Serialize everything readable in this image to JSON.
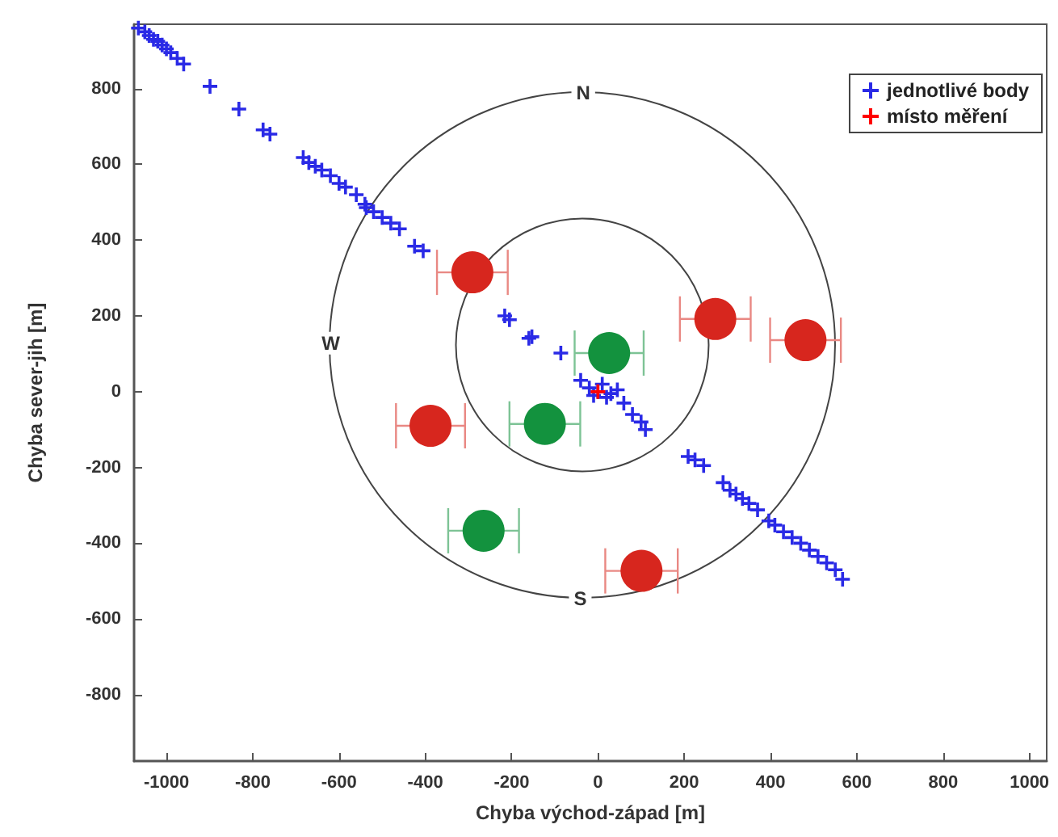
{
  "chart_data": {
    "type": "scatter",
    "xlabel": "Chyba východ-západ [m]",
    "ylabel": "Chyba sever-jih [m]",
    "xlim": [
      -1075,
      1040
    ],
    "ylim": [
      -975,
      970
    ],
    "xticks": [
      -1000,
      -800,
      -600,
      -400,
      -200,
      0,
      200,
      400,
      600,
      800,
      1000
    ],
    "yticks": [
      -800,
      -600,
      -400,
      -200,
      0,
      200,
      400,
      600,
      800
    ],
    "grid": false,
    "legend": "top right",
    "annotations": [
      {
        "text": "N",
        "x": -34,
        "y": 789
      },
      {
        "text": "W",
        "x": -619,
        "y": 128
      },
      {
        "text": "S",
        "x": -41,
        "y": -546
      }
    ],
    "series": [
      {
        "name": "jednotlivé body",
        "color": "#2a2ae6",
        "marker": "cross",
        "x": [
          -1065,
          -1050,
          -1040,
          -1030,
          -1020,
          -1010,
          -1000,
          -990,
          -975,
          -960,
          -899,
          -832,
          -776,
          -760,
          -683,
          -670,
          -655,
          -640,
          -620,
          -600,
          -585,
          -560,
          -540,
          -537,
          -520,
          -500,
          -480,
          -460,
          -425,
          -405,
          -216,
          -205,
          -160,
          -153,
          -86,
          -40,
          -20,
          -10,
          0,
          10,
          20,
          30,
          45,
          60,
          80,
          100,
          110,
          209,
          225,
          245,
          290,
          306,
          320,
          335,
          350,
          370,
          396,
          410,
          430,
          450,
          470,
          490,
          510,
          530,
          550,
          567
        ],
        "values": [
          960,
          950,
          940,
          930,
          925,
          915,
          905,
          895,
          880,
          865,
          806,
          746,
          691,
          680,
          618,
          605,
          595,
          585,
          570,
          550,
          540,
          520,
          495,
          486,
          475,
          460,
          445,
          430,
          384,
          372,
          200,
          190,
          141,
          145,
          102,
          30,
          10,
          -10,
          0,
          20,
          -15,
          -5,
          5,
          -30,
          -60,
          -80,
          -100,
          -171,
          -180,
          -195,
          -240,
          -260,
          -270,
          -282,
          -295,
          -312,
          -341,
          -352,
          -370,
          -385,
          -400,
          -418,
          -435,
          -452,
          -470,
          -495
        ]
      },
      {
        "name": "místo měření",
        "color": "#ff0000",
        "marker": "cross",
        "x": [
          0
        ],
        "values": [
          0
        ]
      },
      {
        "color": "#d7261e",
        "marker": "circle",
        "x": [
          -291,
          -388,
          272,
          481,
          101
        ],
        "values": [
          315,
          -90,
          192,
          136,
          -473
        ],
        "xerrors": [
          82,
          80,
          82,
          82,
          84
        ]
      },
      {
        "color": "#13923e",
        "marker": "circle",
        "x": [
          -265,
          -123,
          26
        ],
        "values": [
          -367,
          -85,
          102
        ],
        "xerrors": [
          82,
          82,
          80
        ]
      }
    ]
  }
}
